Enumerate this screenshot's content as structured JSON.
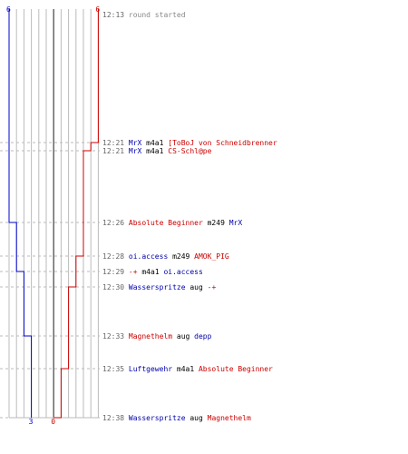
{
  "chart_data": {
    "type": "line",
    "title": "",
    "xlabel": "",
    "ylabel": "",
    "series": [
      {
        "team": "blue",
        "color": "#0000cc",
        "start": 6,
        "end": 3,
        "steps": [
          [
            6,
            "12:13"
          ],
          [
            6,
            "12:26"
          ],
          [
            5,
            "12:26"
          ],
          [
            5,
            "12:29"
          ],
          [
            4,
            "12:29"
          ],
          [
            4,
            "12:33"
          ],
          [
            3,
            "12:33"
          ],
          [
            3,
            "12:38"
          ]
        ]
      },
      {
        "team": "red",
        "color": "#cc0000",
        "start": 6,
        "end": 0,
        "steps": [
          [
            6,
            "12:13"
          ],
          [
            6,
            "12:21"
          ],
          [
            5,
            "12:21"
          ],
          [
            5,
            "12:21b"
          ],
          [
            4,
            "12:21b"
          ],
          [
            4,
            "12:28"
          ],
          [
            3,
            "12:28"
          ],
          [
            3,
            "12:30"
          ],
          [
            2,
            "12:30"
          ],
          [
            2,
            "12:35"
          ],
          [
            1,
            "12:35"
          ],
          [
            1,
            "12:38"
          ],
          [
            0,
            "12:38"
          ]
        ]
      }
    ],
    "top_labels": {
      "blue": "6",
      "red": "6"
    },
    "bottom_labels": {
      "blue": "3",
      "red": "0"
    },
    "events": [
      {
        "time": "12:13",
        "parts": [
          {
            "text": "round started",
            "color": "#888888"
          }
        ]
      },
      {
        "time": "12:21",
        "parts": [
          {
            "text": "MrX",
            "color": "#0000aa"
          },
          {
            "text": " m4a1 ",
            "color": "#000000"
          },
          {
            "text": "[ToBoJ von Schneidbrenner",
            "color": "#cc0000"
          }
        ]
      },
      {
        "time": "12:21",
        "parts": [
          {
            "text": "MrX",
            "color": "#0000aa"
          },
          {
            "text": " m4a1 ",
            "color": "#000000"
          },
          {
            "text": "CS-Schl@pe",
            "color": "#cc0000"
          }
        ]
      },
      {
        "time": "12:26",
        "parts": [
          {
            "text": "Absolute Beginner",
            "color": "#cc0000"
          },
          {
            "text": " m249 ",
            "color": "#000000"
          },
          {
            "text": "MrX",
            "color": "#0000aa"
          }
        ]
      },
      {
        "time": "12:28",
        "parts": [
          {
            "text": "oi.access",
            "color": "#0000aa"
          },
          {
            "text": " m249 ",
            "color": "#000000"
          },
          {
            "text": "AMOK_PIG",
            "color": "#cc0000"
          }
        ]
      },
      {
        "time": "12:29",
        "parts": [
          {
            "text": "-+",
            "color": "#cc0000"
          },
          {
            "text": " m4a1 ",
            "color": "#000000"
          },
          {
            "text": "oi.access",
            "color": "#0000aa"
          }
        ]
      },
      {
        "time": "12:30",
        "parts": [
          {
            "text": "Wasserspritze",
            "color": "#0000aa"
          },
          {
            "text": " aug ",
            "color": "#000000"
          },
          {
            "text": "-+",
            "color": "#cc0000"
          }
        ]
      },
      {
        "time": "12:33",
        "parts": [
          {
            "text": "Magnethelm",
            "color": "#cc0000"
          },
          {
            "text": " aug ",
            "color": "#000000"
          },
          {
            "text": "depp",
            "color": "#0000aa"
          }
        ]
      },
      {
        "time": "12:35",
        "parts": [
          {
            "text": "Luftgewehr",
            "color": "#0000aa"
          },
          {
            "text": " m4a1 ",
            "color": "#000000"
          },
          {
            "text": "Absolute Beginner",
            "color": "#cc0000"
          }
        ]
      },
      {
        "time": "12:38",
        "parts": [
          {
            "text": "Wasserspritze",
            "color": "#0000aa"
          },
          {
            "text": " aug ",
            "color": "#000000"
          },
          {
            "text": "Magnethelm",
            "color": "#cc0000"
          }
        ]
      }
    ],
    "colors": {
      "grid": "#bbbbbb",
      "center": "#666666",
      "time": "#666666"
    }
  }
}
